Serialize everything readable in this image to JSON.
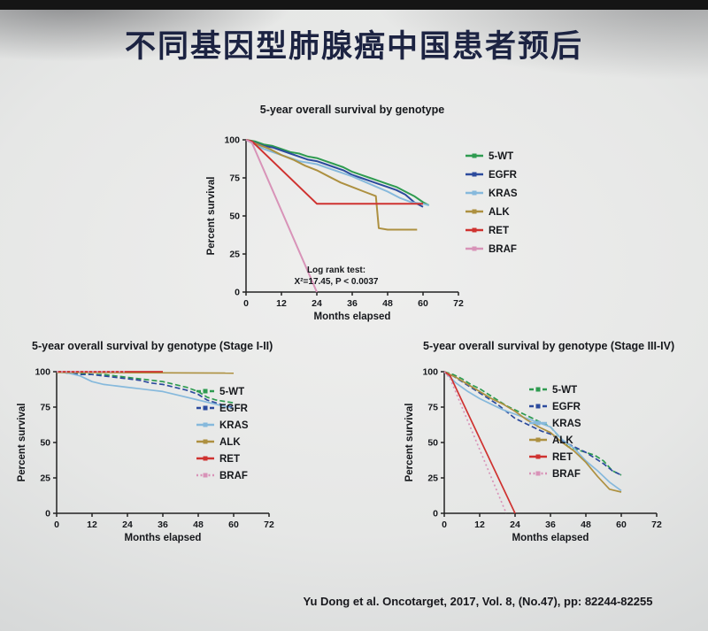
{
  "slide": {
    "title": "不同基因型肺腺癌中国患者预后",
    "citation": "Yu Dong et al. Oncotarget, 2017, Vol. 8, (No.47), pp: 82244-82255"
  },
  "colors": {
    "wt": "#2e9b50",
    "egfr": "#2c4b9d",
    "kras": "#86b9dc",
    "alk": "#ad9040",
    "ret": "#cf3230",
    "braf": "#d893b8"
  },
  "chart_data": [
    {
      "type": "line",
      "title": "5-year overall survival by genotype",
      "xlabel": "Months elapsed",
      "ylabel": "Percent survival",
      "xlim": [
        0,
        72
      ],
      "ylim": [
        0,
        100
      ],
      "xticks": [
        0,
        12,
        24,
        36,
        48,
        60,
        72
      ],
      "yticks": [
        0,
        25,
        50,
        75,
        100
      ],
      "legend_position": "right",
      "annotation": [
        "Log rank test:",
        "X²=17.45, P < 0.0037"
      ],
      "series": [
        {
          "name": "5-WT",
          "color_key": "wt",
          "dash": "solid",
          "x": [
            0,
            3,
            6,
            9,
            12,
            15,
            18,
            21,
            24,
            27,
            30,
            33,
            36,
            39,
            42,
            45,
            48,
            51,
            54,
            57,
            60,
            62
          ],
          "y": [
            100,
            99,
            97,
            96,
            94,
            92,
            91,
            89,
            88,
            86,
            84,
            82,
            79,
            77,
            75,
            73,
            71,
            69,
            66,
            63,
            59,
            57
          ]
        },
        {
          "name": "EGFR",
          "color_key": "egfr",
          "dash": "solid",
          "x": [
            0,
            3,
            6,
            9,
            12,
            15,
            18,
            21,
            24,
            27,
            30,
            33,
            36,
            39,
            42,
            45,
            48,
            51,
            54,
            57,
            60
          ],
          "y": [
            100,
            98,
            96,
            95,
            93,
            91,
            89,
            87,
            86,
            84,
            82,
            80,
            77,
            75,
            73,
            71,
            69,
            67,
            64,
            59,
            56
          ]
        },
        {
          "name": "KRAS",
          "color_key": "kras",
          "dash": "solid",
          "x": [
            0,
            3,
            6,
            9,
            12,
            15,
            18,
            21,
            24,
            27,
            30,
            36,
            42,
            48,
            52,
            56,
            60,
            62
          ],
          "y": [
            100,
            97,
            94,
            92,
            90,
            88,
            86,
            85,
            84,
            82,
            80,
            76,
            71,
            66,
            62,
            59,
            58,
            57
          ]
        },
        {
          "name": "ALK",
          "color_key": "alk",
          "dash": "solid",
          "x": [
            0,
            4,
            8,
            12,
            16,
            20,
            24,
            28,
            32,
            36,
            40,
            44,
            45,
            48,
            52,
            56,
            58
          ],
          "y": [
            100,
            97,
            94,
            90,
            87,
            83,
            80,
            76,
            72,
            69,
            66,
            63,
            42,
            41,
            41,
            41,
            41
          ]
        },
        {
          "name": "RET",
          "color_key": "ret",
          "dash": "solid",
          "x": [
            0,
            2,
            24,
            60
          ],
          "y": [
            100,
            99,
            58,
            58
          ]
        },
        {
          "name": "BRAF",
          "color_key": "braf",
          "dash": "solid",
          "x": [
            0,
            2,
            24
          ],
          "y": [
            100,
            98,
            0
          ]
        }
      ]
    },
    {
      "type": "line",
      "title": "5-year overall survival by genotype (Stage I-II)",
      "xlabel": "Months elapsed",
      "ylabel": "Percent survival",
      "xlim": [
        0,
        72
      ],
      "ylim": [
        0,
        100
      ],
      "xticks": [
        0,
        12,
        24,
        36,
        48,
        60,
        72
      ],
      "yticks": [
        0,
        25,
        50,
        75,
        100
      ],
      "legend_position": "right",
      "series": [
        {
          "name": "5-WT",
          "color_key": "wt",
          "dash": "dashed",
          "x": [
            0,
            4,
            8,
            12,
            16,
            20,
            24,
            28,
            32,
            36,
            40,
            44,
            48,
            51,
            54,
            57,
            60
          ],
          "y": [
            100,
            100,
            99,
            98,
            98,
            97,
            96,
            95,
            94,
            93,
            91,
            89,
            86,
            82,
            80,
            79,
            78
          ]
        },
        {
          "name": "EGFR",
          "color_key": "egfr",
          "dash": "dashed",
          "x": [
            0,
            4,
            8,
            12,
            16,
            20,
            24,
            28,
            32,
            36,
            40,
            44,
            48,
            51,
            54,
            57,
            60
          ],
          "y": [
            100,
            99,
            98,
            98,
            97,
            96,
            95,
            94,
            92,
            91,
            89,
            87,
            84,
            80,
            78,
            76,
            75
          ]
        },
        {
          "name": "KRAS",
          "color_key": "kras",
          "dash": "solid",
          "x": [
            0,
            4,
            8,
            12,
            16,
            20,
            24,
            28,
            32,
            36,
            42,
            48,
            54,
            60
          ],
          "y": [
            100,
            99,
            97,
            93,
            91,
            90,
            89,
            88,
            87,
            86,
            83,
            80,
            77,
            74
          ]
        },
        {
          "name": "ALK",
          "color_key": "alk",
          "dash": "solid",
          "x": [
            0,
            60
          ],
          "y": [
            99.5,
            99
          ]
        },
        {
          "name": "RET",
          "color_key": "ret",
          "dash": "solid",
          "x": [
            0,
            36
          ],
          "y": [
            100,
            100
          ]
        },
        {
          "name": "BRAF",
          "color_key": "braf",
          "dash": "dotted",
          "x": [
            0,
            24
          ],
          "y": [
            100,
            100
          ]
        }
      ]
    },
    {
      "type": "line",
      "title": "5-year overall survival by genotype (Stage III-IV)",
      "xlabel": "Months elapsed",
      "ylabel": "Percent survival",
      "xlim": [
        0,
        72
      ],
      "ylim": [
        0,
        100
      ],
      "xticks": [
        0,
        12,
        24,
        36,
        48,
        60,
        72
      ],
      "yticks": [
        0,
        25,
        50,
        75,
        100
      ],
      "legend_position": "right",
      "series": [
        {
          "name": "5-WT",
          "color_key": "wt",
          "dash": "dashed",
          "x": [
            0,
            3,
            6,
            9,
            12,
            15,
            18,
            21,
            24,
            27,
            30,
            33,
            36,
            39,
            42,
            45,
            48,
            51,
            54,
            57,
            60
          ],
          "y": [
            100,
            98,
            95,
            91,
            88,
            84,
            80,
            76,
            73,
            70,
            67,
            64,
            61,
            54,
            47,
            45,
            43,
            41,
            37,
            30,
            27
          ]
        },
        {
          "name": "EGFR",
          "color_key": "egfr",
          "dash": "dashed",
          "x": [
            0,
            3,
            6,
            9,
            12,
            15,
            18,
            21,
            24,
            27,
            30,
            33,
            36,
            39,
            42,
            45,
            48,
            51,
            54,
            57,
            60
          ],
          "y": [
            100,
            97,
            93,
            89,
            85,
            81,
            77,
            72,
            67,
            64,
            61,
            58,
            56,
            52,
            49,
            46,
            43,
            39,
            35,
            30,
            27
          ]
        },
        {
          "name": "KRAS",
          "color_key": "kras",
          "dash": "solid",
          "x": [
            0,
            4,
            8,
            12,
            16,
            20,
            24,
            28,
            32,
            36,
            40,
            44,
            48,
            52,
            56,
            60
          ],
          "y": [
            100,
            92,
            86,
            81,
            77,
            73,
            70,
            67,
            64,
            61,
            52,
            46,
            37,
            30,
            22,
            16
          ]
        },
        {
          "name": "ALK",
          "color_key": "alk",
          "dash": "solid",
          "x": [
            0,
            4,
            8,
            12,
            16,
            20,
            24,
            28,
            32,
            36,
            40,
            44,
            48,
            52,
            56,
            60
          ],
          "y": [
            100,
            96,
            91,
            86,
            81,
            77,
            72,
            66,
            61,
            57,
            50,
            44,
            36,
            26,
            17,
            15
          ]
        },
        {
          "name": "RET",
          "color_key": "ret",
          "dash": "solid",
          "x": [
            0,
            2,
            24
          ],
          "y": [
            100,
            97,
            0
          ]
        },
        {
          "name": "BRAF",
          "color_key": "braf",
          "dash": "dotted",
          "x": [
            0,
            2,
            21
          ],
          "y": [
            100,
            95,
            0
          ]
        }
      ]
    }
  ]
}
